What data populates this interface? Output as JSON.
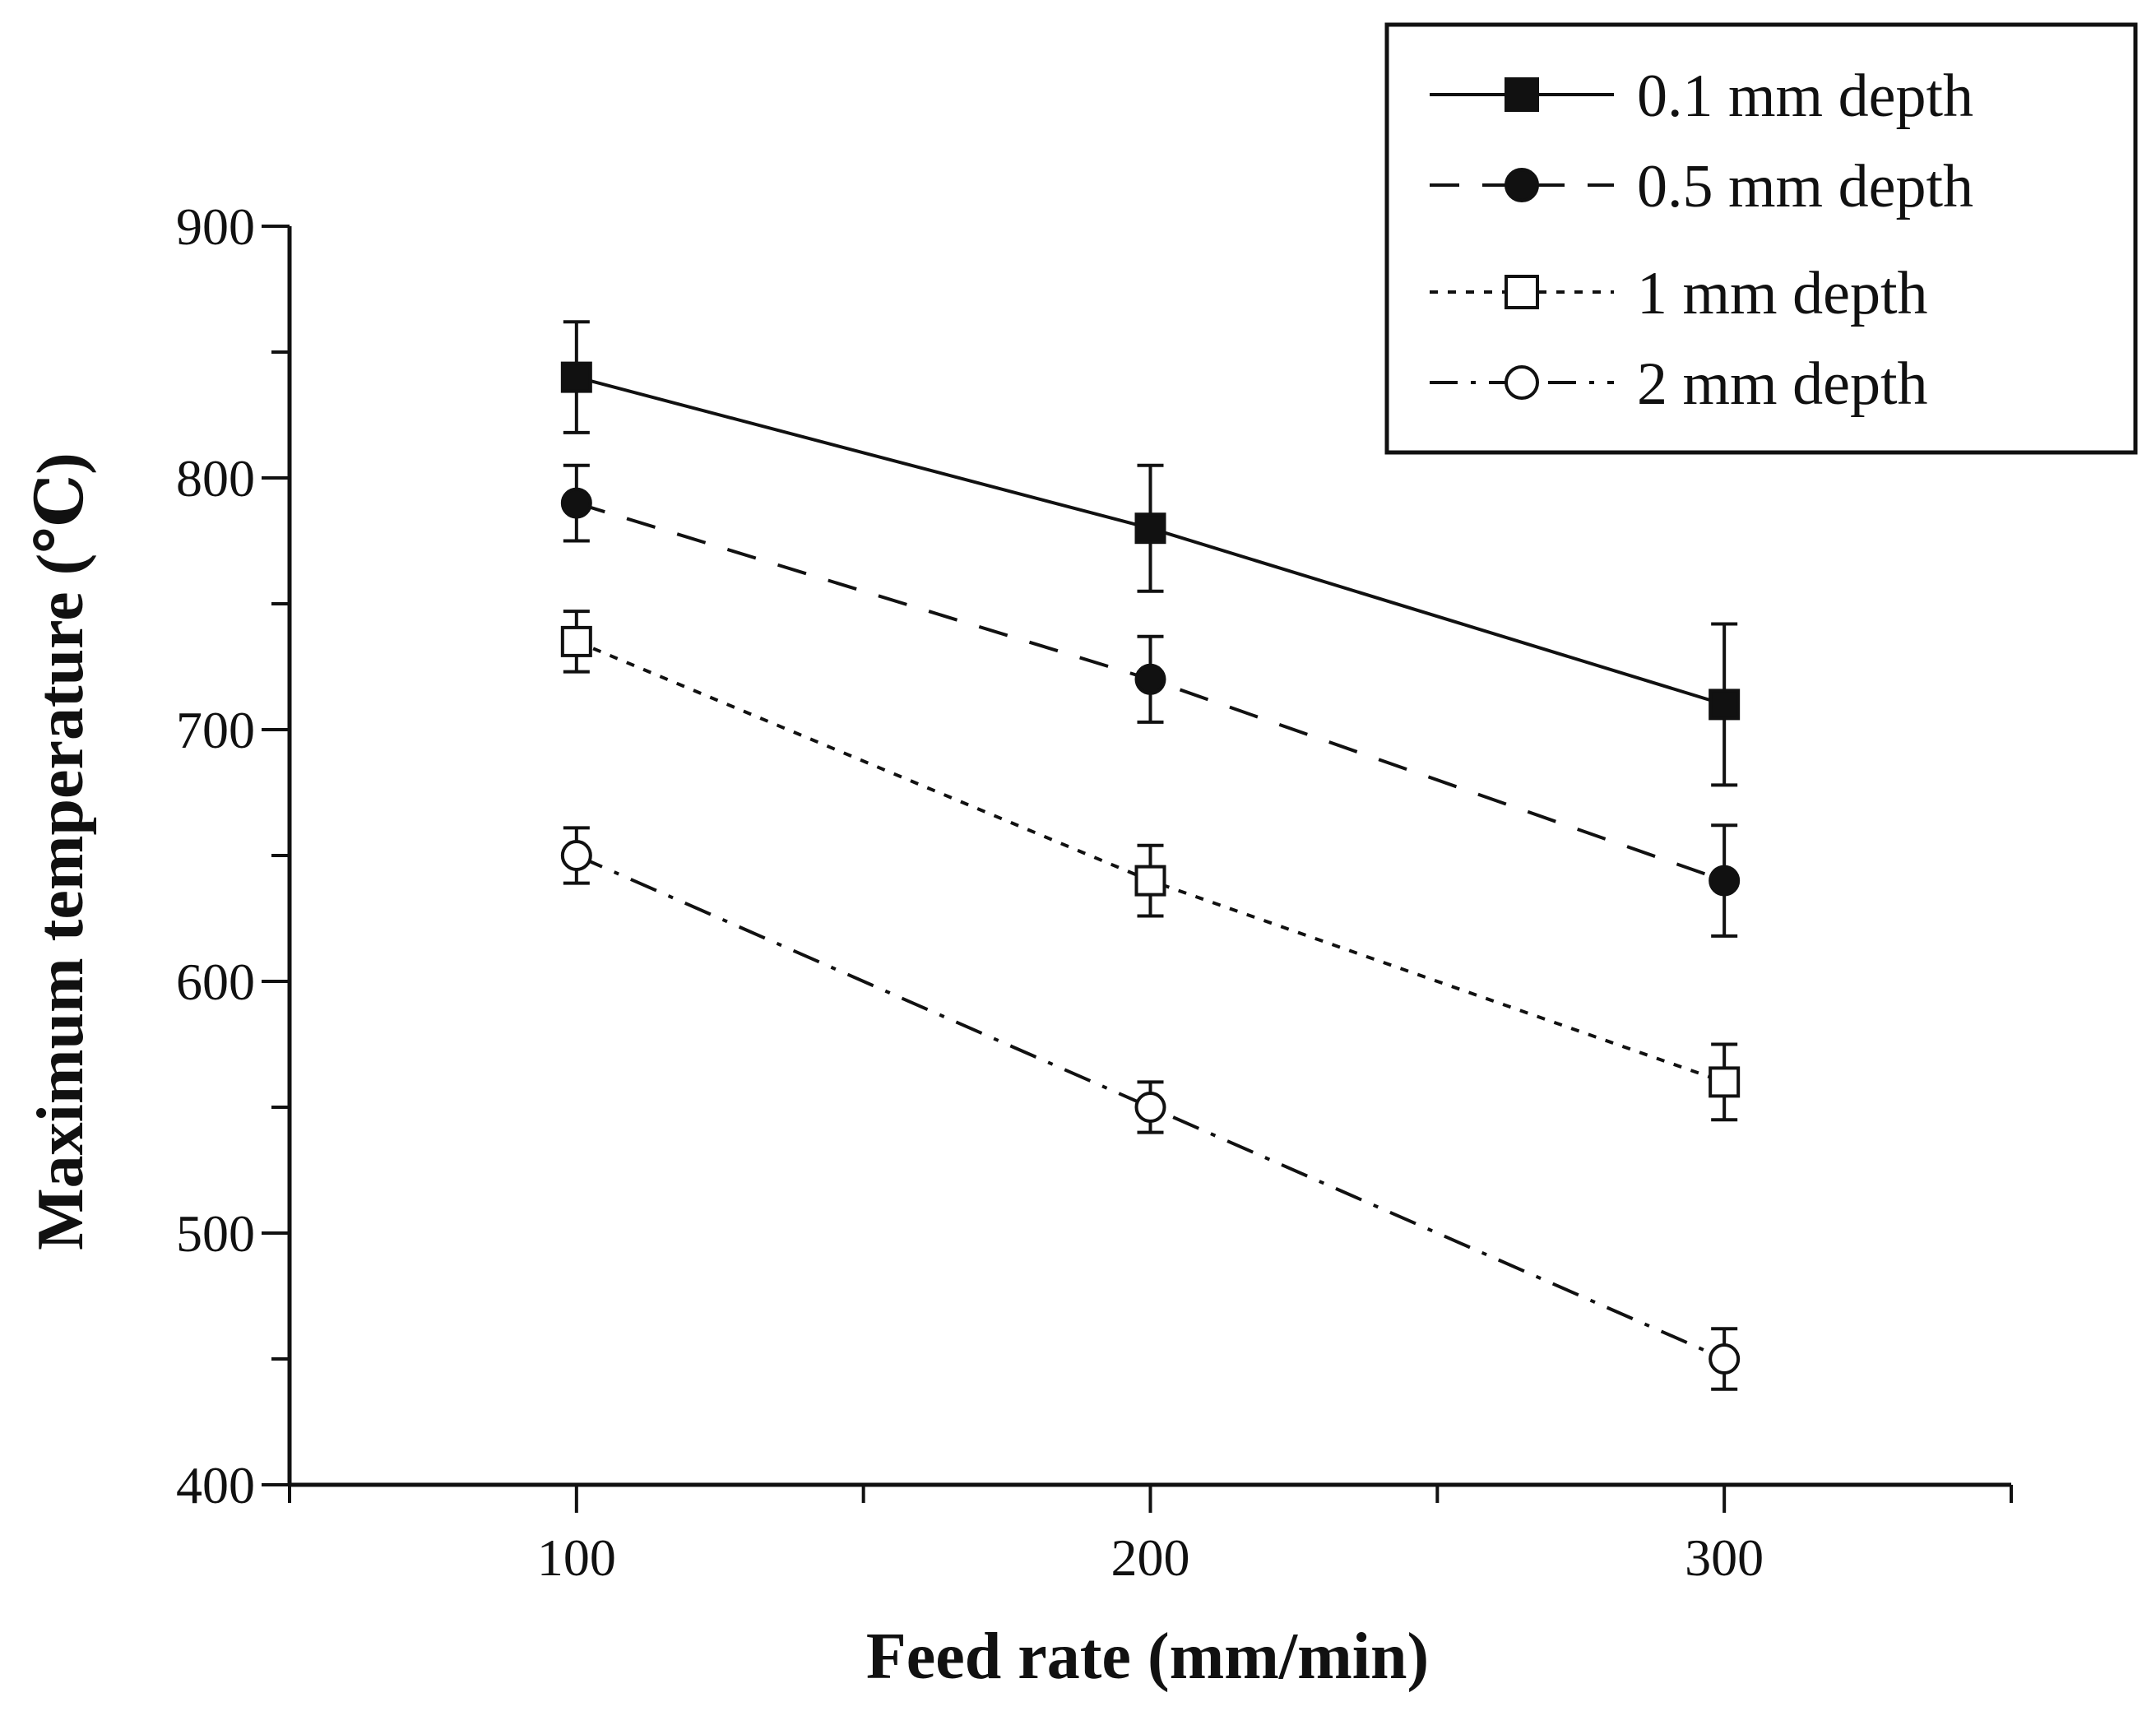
{
  "chart_data": {
    "type": "line",
    "title": "",
    "xlabel": "Feed rate (mm/min)",
    "ylabel": "Maximum temperature (℃)",
    "x": [
      100,
      200,
      300
    ],
    "xlim": [
      50,
      350
    ],
    "ylim": [
      400,
      900
    ],
    "xticks": [
      100,
      200,
      300
    ],
    "yticks": [
      400,
      500,
      600,
      700,
      800,
      900
    ],
    "grid": false,
    "legend_position": "top-right",
    "series": [
      {
        "name": "0.1 mm depth",
        "line_style": "solid",
        "marker": "filled-square",
        "values": [
          840,
          780,
          710
        ],
        "error": [
          22,
          25,
          32
        ]
      },
      {
        "name": "0.5 mm depth",
        "line_style": "dashed",
        "marker": "filled-circle",
        "values": [
          790,
          720,
          640
        ],
        "error": [
          15,
          17,
          22
        ]
      },
      {
        "name": "1 mm depth",
        "line_style": "dotted",
        "marker": "open-square",
        "values": [
          735,
          640,
          560
        ],
        "error": [
          12,
          14,
          15
        ]
      },
      {
        "name": "2 mm depth",
        "line_style": "dash-dot",
        "marker": "open-circle",
        "values": [
          650,
          550,
          450
        ],
        "error": [
          11,
          10,
          12
        ]
      }
    ],
    "colors": {
      "line": "#111111",
      "background": "#ffffff"
    }
  }
}
